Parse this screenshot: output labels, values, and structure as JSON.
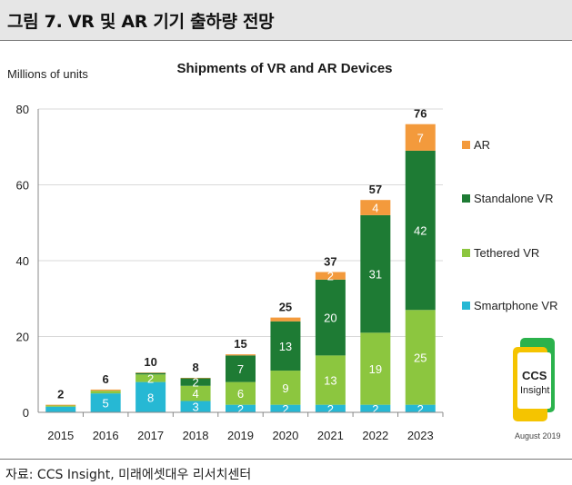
{
  "page": {
    "heading": "그림 7.  VR 및 AR 기기 출하량 전망",
    "source": "자료: CCS Insight, 미래에셋대우 리서치센터"
  },
  "logo": {
    "line1": "CCS",
    "line2": "Insight",
    "date": "August 2019"
  },
  "colors": {
    "ar": "#f39a3c",
    "standalone": "#1e7b34",
    "tethered": "#8cc63f",
    "smartphone": "#26b8d4",
    "axis": "#888888",
    "grid": "#d9d9d9"
  },
  "chart_data": {
    "type": "bar",
    "stacked": true,
    "title": "Shipments of VR and AR Devices",
    "ylabel": "Millions of units",
    "xlabel": "",
    "ylim": [
      0,
      80
    ],
    "yticks": [
      0,
      20,
      40,
      60,
      80
    ],
    "grid": true,
    "legend_position": "right",
    "categories": [
      "2015",
      "2016",
      "2017",
      "2018",
      "2019",
      "2020",
      "2021",
      "2022",
      "2023"
    ],
    "series": [
      {
        "name": "Smartphone VR",
        "color_key": "smartphone",
        "values": [
          1.5,
          5.0,
          8.0,
          3.0,
          2.0,
          2.0,
          2.0,
          2.0,
          2.0
        ],
        "labels": [
          "",
          "5",
          "8",
          "3",
          "2",
          "2",
          "2",
          "2",
          "2"
        ]
      },
      {
        "name": "Tethered VR",
        "color_key": "tethered",
        "values": [
          0.3,
          0.7,
          2.0,
          4.0,
          6.0,
          9.0,
          13.0,
          19.0,
          25.0
        ],
        "labels": [
          "",
          "",
          "2",
          "4",
          "6",
          "9",
          "13",
          "19",
          "25"
        ]
      },
      {
        "name": "Standalone VR",
        "color_key": "standalone",
        "values": [
          0,
          0,
          0.4,
          2.0,
          7.0,
          13.0,
          20.0,
          31.0,
          42.0
        ],
        "labels": [
          "",
          "",
          "",
          "2",
          "7",
          "13",
          "20",
          "31",
          "42"
        ]
      },
      {
        "name": "AR",
        "color_key": "ar",
        "values": [
          0.2,
          0.3,
          0.1,
          0.1,
          0.3,
          1.0,
          2.0,
          4.0,
          7.0
        ],
        "labels": [
          "",
          "",
          "",
          "",
          "",
          "",
          "2",
          "4",
          "7"
        ]
      }
    ],
    "totals": [
      "2",
      "6",
      "10",
      "8",
      "15",
      "25",
      "37",
      "57",
      "76"
    ],
    "legend_order": [
      "AR",
      "Standalone VR",
      "Tethered VR",
      "Smartphone VR"
    ]
  }
}
